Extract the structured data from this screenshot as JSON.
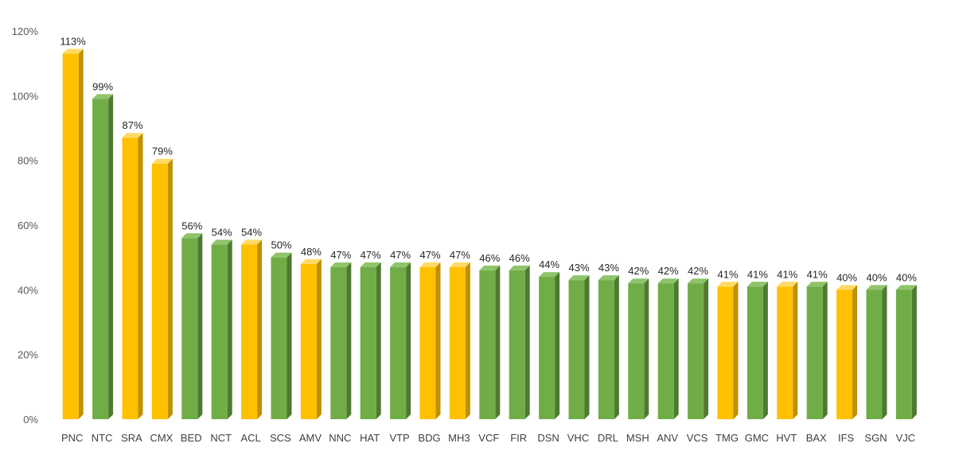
{
  "chart_data": {
    "type": "bar",
    "style": "3d-column",
    "categories": [
      "PNC",
      "NTC",
      "SRA",
      "CMX",
      "BED",
      "NCT",
      "ACL",
      "SCS",
      "AMV",
      "NNC",
      "HAT",
      "VTP",
      "BDG",
      "MH3",
      "VCF",
      "FIR",
      "DSN",
      "VHC",
      "DRL",
      "MSH",
      "ANV",
      "VCS",
      "TMG",
      "GMC",
      "HVT",
      "BAX",
      "IFS",
      "SGN",
      "VJC"
    ],
    "values": [
      113,
      99,
      87,
      79,
      56,
      54,
      54,
      50,
      48,
      47,
      47,
      47,
      47,
      47,
      46,
      46,
      44,
      43,
      43,
      42,
      42,
      42,
      41,
      41,
      41,
      41,
      40,
      40,
      40
    ],
    "data_labels": [
      "113%",
      "99%",
      "87%",
      "79%",
      "56%",
      "54%",
      "54%",
      "50%",
      "48%",
      "47%",
      "47%",
      "47%",
      "47%",
      "47%",
      "46%",
      "46%",
      "44%",
      "43%",
      "43%",
      "42%",
      "42%",
      "42%",
      "41%",
      "41%",
      "41%",
      "41%",
      "40%",
      "40%",
      "40%"
    ],
    "bar_colors": [
      "yellow",
      "green",
      "yellow",
      "yellow",
      "green",
      "green",
      "yellow",
      "green",
      "yellow",
      "green",
      "green",
      "green",
      "yellow",
      "yellow",
      "green",
      "green",
      "green",
      "green",
      "green",
      "green",
      "green",
      "green",
      "yellow",
      "green",
      "yellow",
      "green",
      "yellow",
      "green",
      "green"
    ],
    "palette": {
      "yellow": {
        "front": "#FFC000",
        "side": "#BF9000",
        "top": "#FFD966"
      },
      "green": {
        "front": "#70AD47",
        "side": "#4E7A30",
        "top": "#8FC46A"
      }
    },
    "y_ticks": [
      0,
      20,
      40,
      60,
      80,
      100,
      120
    ],
    "y_tick_labels": [
      "0%",
      "20%",
      "40%",
      "60%",
      "80%",
      "100%",
      "120%"
    ],
    "ylim": [
      0,
      120
    ],
    "title": "",
    "xlabel": "",
    "ylabel": "",
    "grid": false,
    "legend": "none"
  }
}
